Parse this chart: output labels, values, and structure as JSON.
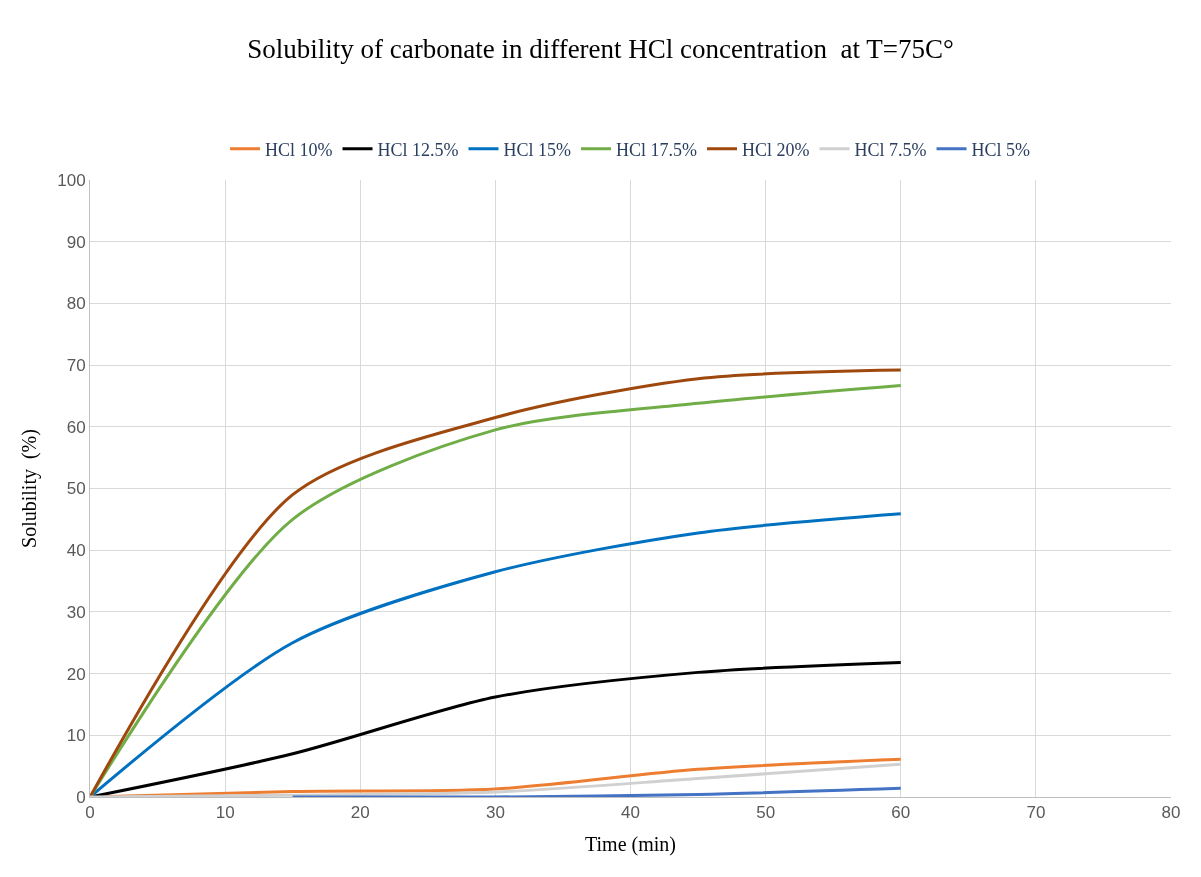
{
  "chart_data": {
    "type": "line",
    "title": "Solubility of carbonate in different HCl concentration  at T=75C°",
    "xlabel": "Time (min)",
    "ylabel": "Solubility  (%)",
    "x": [
      0,
      15,
      30,
      45,
      60
    ],
    "series": [
      {
        "name": "HCl 10%",
        "color": "#ed7d31",
        "values": [
          0,
          0.9,
          1.3,
          4.5,
          6.1
        ]
      },
      {
        "name": "HCl 12.5%",
        "color": "#000000",
        "values": [
          0,
          7,
          16.2,
          20.2,
          21.8
        ]
      },
      {
        "name": "HCl 15%",
        "color": "#0070c0",
        "values": [
          0,
          25,
          36.5,
          42.8,
          45.9
        ]
      },
      {
        "name": "HCl 17.5%",
        "color": "#70ad47",
        "values": [
          0,
          45,
          59.5,
          63.8,
          66.7
        ]
      },
      {
        "name": "HCl 20%",
        "color": "#9e480e",
        "values": [
          0,
          49,
          61.5,
          67.8,
          69.2
        ]
      },
      {
        "name": "HCl 7.5%",
        "color": "#d0d0d0",
        "values": [
          0,
          0.3,
          0.8,
          3,
          5.3
        ]
      },
      {
        "name": "HCl 5%",
        "color": "#4472c4",
        "x": [
          15,
          30,
          45,
          60
        ],
        "values": [
          0,
          0,
          0.4,
          1.4
        ]
      }
    ],
    "xlim": [
      0,
      80
    ],
    "xticks": [
      0,
      10,
      20,
      30,
      40,
      50,
      60,
      70,
      80
    ],
    "ylim": [
      0,
      100
    ],
    "yticks": [
      0,
      10,
      20,
      30,
      40,
      50,
      60,
      70,
      80,
      90,
      100
    ],
    "grid": true,
    "legend": "top",
    "marker": "none",
    "line_style": "solid"
  }
}
